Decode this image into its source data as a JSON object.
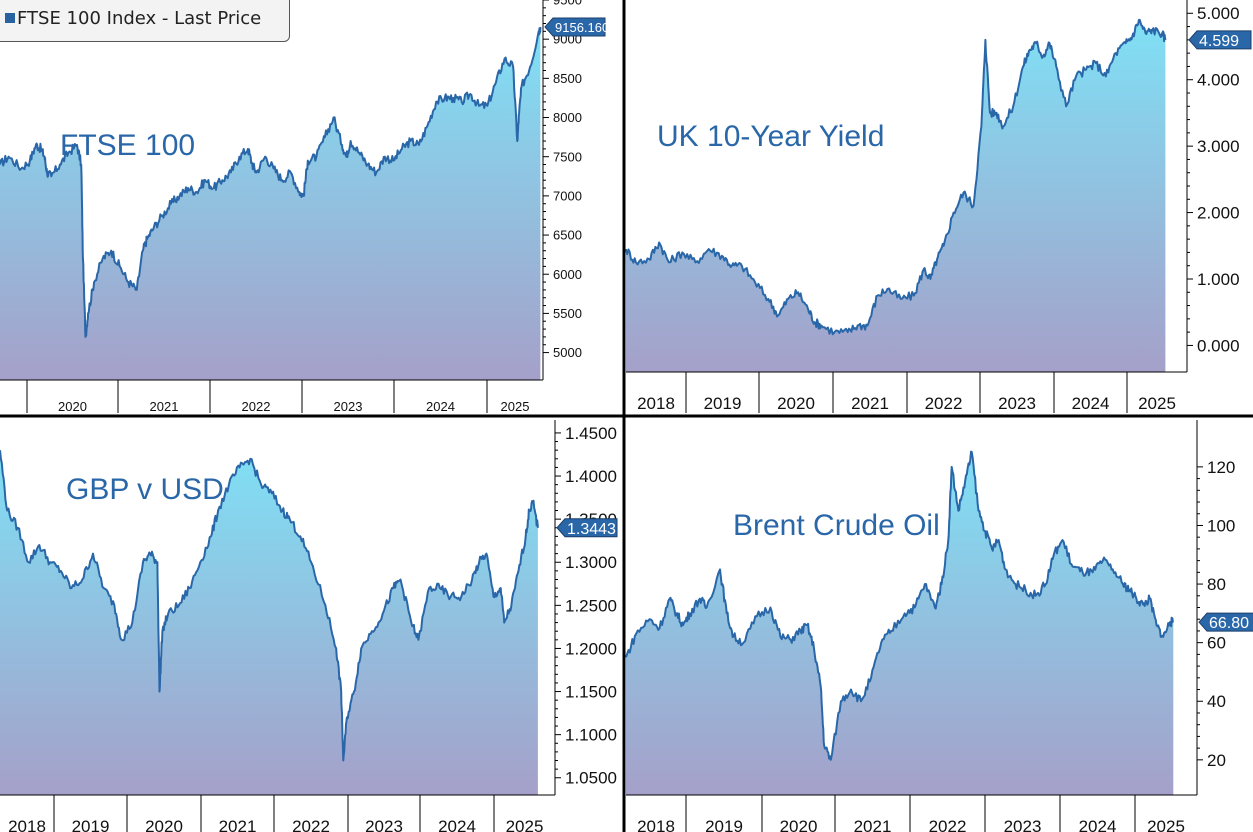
{
  "colors": {
    "line": "#2a67a8",
    "fill_top": "#7fe0f5",
    "fill_bottom": "#a5a0c9",
    "badge": "#2a67a8",
    "grid": "#000000",
    "title": "#2a67a8"
  },
  "legend": {
    "label": "FTSE 100 Index - Last Price"
  },
  "chart_data": [
    {
      "type": "area",
      "title": "FTSE 100",
      "x_tick_labels": [
        "2020",
        "2021",
        "2022",
        "2023",
        "2024",
        "2025"
      ],
      "y_tick_labels": [
        "5000",
        "5500",
        "6000",
        "6500",
        "7000",
        "7500",
        "8000",
        "8500",
        "9000",
        "9500"
      ],
      "ylim": [
        4650,
        9500
      ],
      "last_value_label": "9156.160",
      "x_unit": "year",
      "xlim": [
        2019.2,
        2025.55
      ],
      "series": [
        {
          "x": [
            2019.2,
            2019.3,
            2019.45,
            2019.55,
            2019.62,
            2019.68,
            2019.72,
            2019.75,
            2019.8,
            2019.9,
            2020.0,
            2020.1,
            2020.15,
            2020.17,
            2020.2,
            2020.23,
            2020.3,
            2020.4,
            2020.5,
            2020.6,
            2020.7,
            2020.8,
            2020.87,
            2020.92,
            2021.0,
            2021.1,
            2021.2,
            2021.3,
            2021.4,
            2021.5,
            2021.6,
            2021.7,
            2021.8,
            2021.9,
            2022.0,
            2022.1,
            2022.15,
            2022.2,
            2022.3,
            2022.4,
            2022.5,
            2022.6,
            2022.7,
            2022.75,
            2022.8,
            2022.9,
            2023.0,
            2023.1,
            2023.2,
            2023.25,
            2023.3,
            2023.4,
            2023.5,
            2023.6,
            2023.7,
            2023.8,
            2023.9,
            2024.0,
            2024.1,
            2024.2,
            2024.3,
            2024.4,
            2024.5,
            2024.6,
            2024.7,
            2024.8,
            2024.9,
            2025.0,
            2025.1,
            2025.2,
            2025.25,
            2025.27,
            2025.3,
            2025.4,
            2025.5,
            2025.52
          ],
          "y": [
            7400,
            7500,
            7350,
            7450,
            7650,
            7600,
            7500,
            7300,
            7250,
            7400,
            7550,
            7650,
            7400,
            6200,
            5200,
            5500,
            5900,
            6200,
            6300,
            6100,
            5900,
            5800,
            6300,
            6450,
            6600,
            6750,
            6900,
            7000,
            7100,
            7050,
            7200,
            7100,
            7200,
            7300,
            7500,
            7600,
            7400,
            7300,
            7500,
            7350,
            7200,
            7300,
            7050,
            7000,
            7450,
            7500,
            7750,
            8000,
            7650,
            7500,
            7700,
            7550,
            7400,
            7300,
            7500,
            7450,
            7600,
            7700,
            7650,
            7900,
            8200,
            8250,
            8250,
            8200,
            8300,
            8150,
            8150,
            8450,
            8750,
            8650,
            7700,
            8050,
            8400,
            8650,
            9100,
            9156
          ]
        }
      ]
    },
    {
      "type": "area",
      "title": "UK 10-Year Yield",
      "x_tick_labels": [
        "2018",
        "2019",
        "2020",
        "2021",
        "2022",
        "2023",
        "2024",
        "2025"
      ],
      "y_tick_labels": [
        "0.000",
        "1.000",
        "2.000",
        "3.000",
        "4.000",
        "5.000"
      ],
      "ylim": [
        -0.4,
        5.2
      ],
      "last_value_label": "4.599",
      "x_unit": "year",
      "xlim": [
        2017.35,
        2025.6
      ],
      "series": [
        {
          "x": [
            2017.35,
            2017.5,
            2017.7,
            2017.85,
            2018.0,
            2018.2,
            2018.4,
            2018.6,
            2018.8,
            2018.95,
            2019.1,
            2019.3,
            2019.5,
            2019.65,
            2019.8,
            2019.95,
            2020.1,
            2020.2,
            2020.3,
            2020.5,
            2020.7,
            2020.85,
            2021.0,
            2021.15,
            2021.3,
            2021.5,
            2021.7,
            2021.85,
            2021.95,
            2022.05,
            2022.15,
            2022.3,
            2022.45,
            2022.6,
            2022.72,
            2022.78,
            2022.85,
            2022.95,
            2023.05,
            2023.2,
            2023.35,
            2023.45,
            2023.55,
            2023.65,
            2023.75,
            2023.85,
            2024.0,
            2024.15,
            2024.3,
            2024.45,
            2024.6,
            2024.75,
            2024.9,
            2025.0,
            2025.1,
            2025.2,
            2025.3,
            2025.45,
            2025.5
          ],
          "y": [
            1.45,
            1.25,
            1.3,
            1.55,
            1.25,
            1.4,
            1.25,
            1.45,
            1.35,
            1.2,
            1.2,
            0.95,
            0.7,
            0.45,
            0.7,
            0.8,
            0.55,
            0.35,
            0.3,
            0.2,
            0.2,
            0.3,
            0.3,
            0.75,
            0.85,
            0.7,
            0.75,
            1.15,
            1.0,
            1.3,
            1.5,
            2.0,
            2.3,
            2.1,
            3.3,
            4.6,
            3.5,
            3.5,
            3.3,
            3.6,
            4.2,
            4.45,
            4.55,
            4.35,
            4.55,
            4.2,
            3.6,
            4.05,
            4.15,
            4.25,
            4.05,
            4.4,
            4.55,
            4.65,
            4.9,
            4.7,
            4.75,
            4.7,
            4.6
          ]
        }
      ]
    },
    {
      "type": "area",
      "title": "GBP v USD",
      "x_tick_labels": [
        "2018",
        "2019",
        "2020",
        "2021",
        "2022",
        "2023",
        "2024",
        "2025"
      ],
      "y_tick_labels": [
        "1.0500",
        "1.1000",
        "1.1500",
        "1.2000",
        "1.2500",
        "1.3000",
        "1.3500",
        "1.4000",
        "1.4500"
      ],
      "ylim": [
        1.03,
        1.465
      ],
      "last_value_label": "1.3443",
      "x_unit": "year",
      "xlim": [
        2017.95,
        2025.5
      ],
      "series": [
        {
          "x": [
            2017.95,
            2018.05,
            2018.2,
            2018.35,
            2018.5,
            2018.65,
            2018.8,
            2018.95,
            2019.1,
            2019.25,
            2019.4,
            2019.55,
            2019.65,
            2019.8,
            2019.95,
            2020.05,
            2020.15,
            2020.18,
            2020.22,
            2020.3,
            2020.45,
            2020.6,
            2020.75,
            2020.9,
            2021.0,
            2021.15,
            2021.3,
            2021.45,
            2021.6,
            2021.75,
            2021.9,
            2022.0,
            2022.15,
            2022.3,
            2022.5,
            2022.65,
            2022.72,
            2022.75,
            2022.8,
            2022.9,
            2023.0,
            2023.15,
            2023.3,
            2023.45,
            2023.55,
            2023.7,
            2023.8,
            2023.95,
            2024.1,
            2024.25,
            2024.4,
            2024.55,
            2024.65,
            2024.75,
            2024.85,
            2024.95,
            2025.0,
            2025.1,
            2025.2,
            2025.3,
            2025.35,
            2025.4,
            2025.47
          ],
          "y": [
            1.43,
            1.36,
            1.34,
            1.3,
            1.32,
            1.3,
            1.29,
            1.27,
            1.28,
            1.31,
            1.27,
            1.25,
            1.21,
            1.23,
            1.3,
            1.31,
            1.3,
            1.15,
            1.22,
            1.24,
            1.25,
            1.27,
            1.3,
            1.33,
            1.36,
            1.39,
            1.41,
            1.42,
            1.39,
            1.38,
            1.36,
            1.35,
            1.33,
            1.3,
            1.25,
            1.2,
            1.15,
            1.07,
            1.12,
            1.15,
            1.2,
            1.22,
            1.24,
            1.27,
            1.28,
            1.23,
            1.21,
            1.27,
            1.27,
            1.26,
            1.26,
            1.28,
            1.3,
            1.31,
            1.26,
            1.27,
            1.23,
            1.25,
            1.29,
            1.33,
            1.36,
            1.37,
            1.34
          ]
        }
      ]
    },
    {
      "type": "area",
      "title": "Brent Crude Oil",
      "x_tick_labels": [
        "2018",
        "2019",
        "2020",
        "2021",
        "2022",
        "2023",
        "2024",
        "2025"
      ],
      "y_tick_labels": [
        "20",
        "40",
        "60",
        "80",
        "100",
        "120"
      ],
      "ylim": [
        8,
        136
      ],
      "last_value_label": "66.80",
      "x_unit": "year",
      "xlim": [
        2017.35,
        2025.6
      ],
      "series": [
        {
          "x": [
            2017.35,
            2017.5,
            2017.7,
            2017.85,
            2018.0,
            2018.1,
            2018.2,
            2018.3,
            2018.45,
            2018.55,
            2018.75,
            2018.85,
            2018.95,
            2019.1,
            2019.3,
            2019.5,
            2019.65,
            2019.8,
            2019.95,
            2020.05,
            2020.15,
            2020.25,
            2020.3,
            2020.4,
            2020.55,
            2020.7,
            2020.85,
            2021.0,
            2021.15,
            2021.3,
            2021.5,
            2021.65,
            2021.8,
            2021.95,
            2022.05,
            2022.15,
            2022.2,
            2022.3,
            2022.4,
            2022.5,
            2022.6,
            2022.7,
            2022.8,
            2022.9,
            2023.0,
            2023.15,
            2023.3,
            2023.45,
            2023.6,
            2023.72,
            2023.85,
            2024.0,
            2024.15,
            2024.3,
            2024.45,
            2024.6,
            2024.75,
            2024.85,
            2024.95,
            2025.05,
            2025.15,
            2025.25,
            2025.35,
            2025.45,
            2025.5
          ],
          "y": [
            55,
            63,
            68,
            65,
            75,
            70,
            66,
            70,
            75,
            72,
            85,
            70,
            62,
            60,
            69,
            72,
            62,
            61,
            64,
            66,
            58,
            45,
            25,
            20,
            40,
            44,
            40,
            48,
            60,
            64,
            70,
            72,
            80,
            72,
            80,
            95,
            120,
            105,
            115,
            125,
            105,
            98,
            92,
            95,
            85,
            80,
            78,
            76,
            80,
            90,
            95,
            86,
            84,
            84,
            88,
            85,
            80,
            78,
            75,
            73,
            75,
            66,
            62,
            67,
            67
          ]
        }
      ]
    }
  ]
}
